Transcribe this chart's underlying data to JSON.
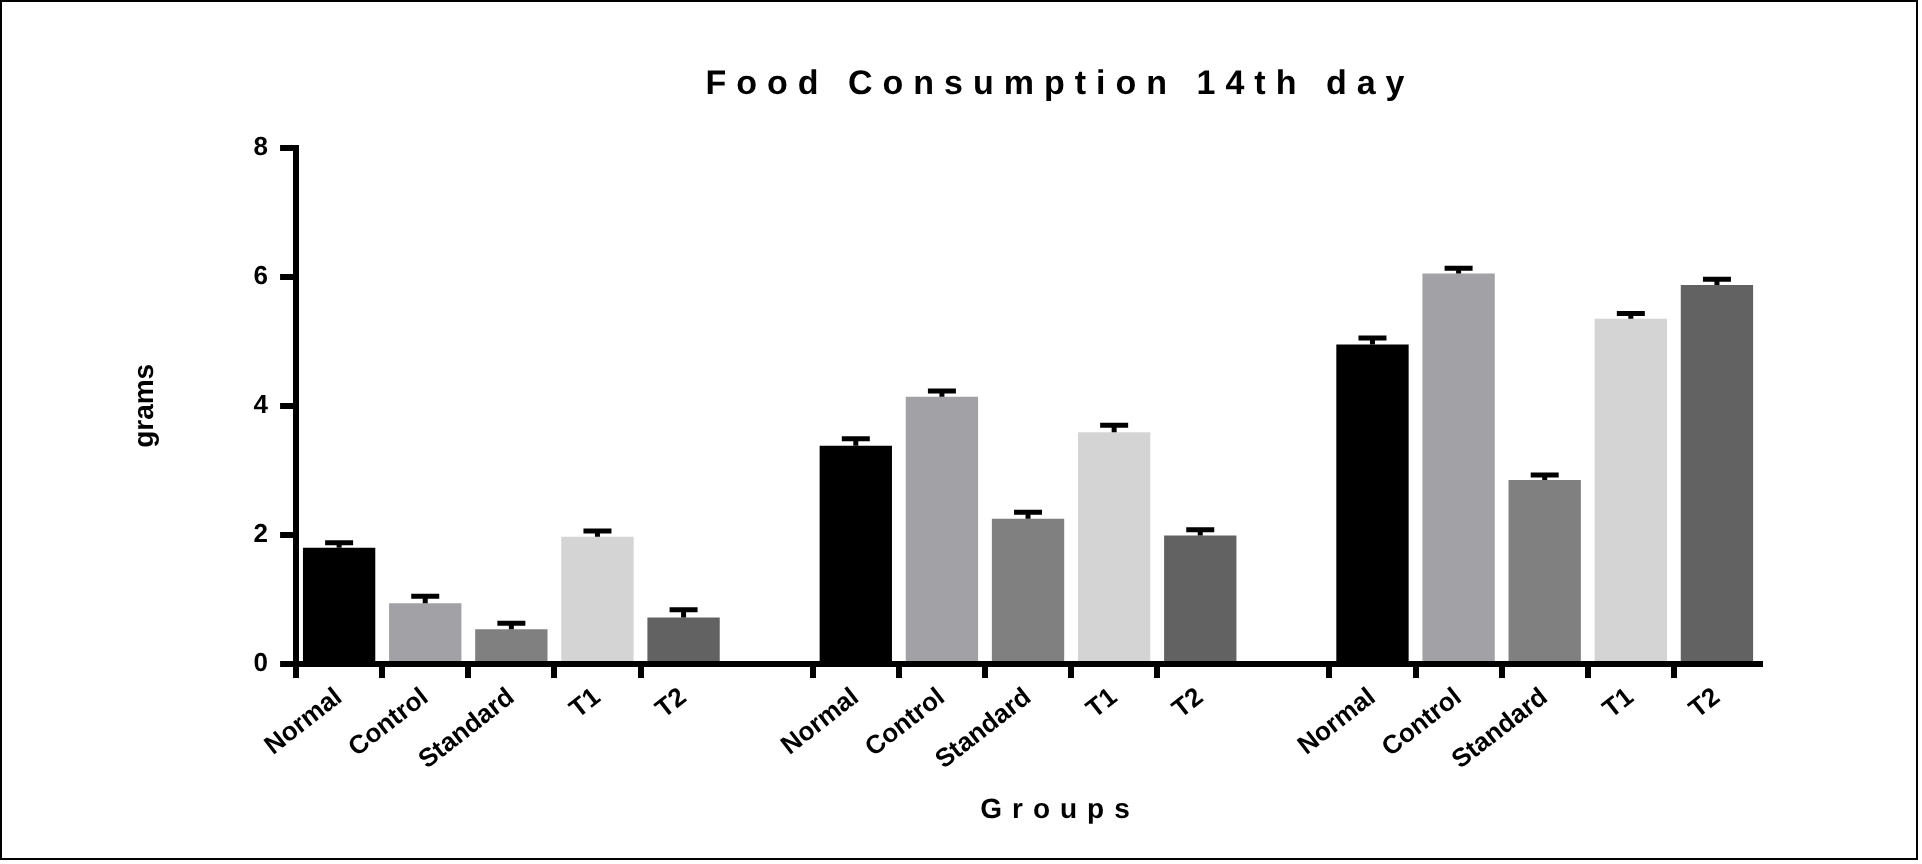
{
  "chart_data": {
    "type": "bar",
    "title": "Food Consumption 14th day",
    "xlabel": "Groups",
    "ylabel": "grams",
    "categories": [
      "Normal",
      "Control",
      "Standard",
      "T1",
      "T2",
      null,
      "Normal",
      "Control",
      "Standard",
      "T1",
      "T2",
      null,
      "Normal",
      "Control",
      "Standard",
      "T1",
      "T2"
    ],
    "values": [
      1.8,
      0.94,
      0.54,
      1.97,
      0.72,
      null,
      3.38,
      4.14,
      2.25,
      3.59,
      1.99,
      null,
      4.95,
      6.05,
      2.85,
      5.35,
      5.87
    ],
    "errors": [
      [
        1.8,
        1.88
      ],
      [
        0.94,
        1.05
      ],
      [
        0.54,
        0.63
      ],
      [
        1.97,
        2.06
      ],
      [
        0.72,
        0.84
      ],
      null,
      [
        3.38,
        3.49
      ],
      [
        4.14,
        4.23
      ],
      [
        2.25,
        2.35
      ],
      [
        3.59,
        3.7
      ],
      [
        1.99,
        2.08
      ],
      null,
      [
        4.95,
        5.05
      ],
      [
        6.05,
        6.13
      ],
      [
        2.85,
        2.93
      ],
      [
        5.35,
        5.43
      ],
      [
        5.87,
        5.96
      ]
    ],
    "colors": [
      "#000000",
      "#a1a1a6",
      "#808080",
      "#d4d4d4",
      "#626262",
      "#ffffff",
      "#000000",
      "#a1a1a6",
      "#808080",
      "#d4d4d4",
      "#626262",
      "#ffffff",
      "#000000",
      "#a1a1a6",
      "#808080",
      "#d4d4d4",
      "#626262"
    ],
    "ylim": [
      0,
      8
    ],
    "yticks": [
      0,
      2,
      4,
      6,
      8
    ],
    "grid": false,
    "legend": false
  }
}
